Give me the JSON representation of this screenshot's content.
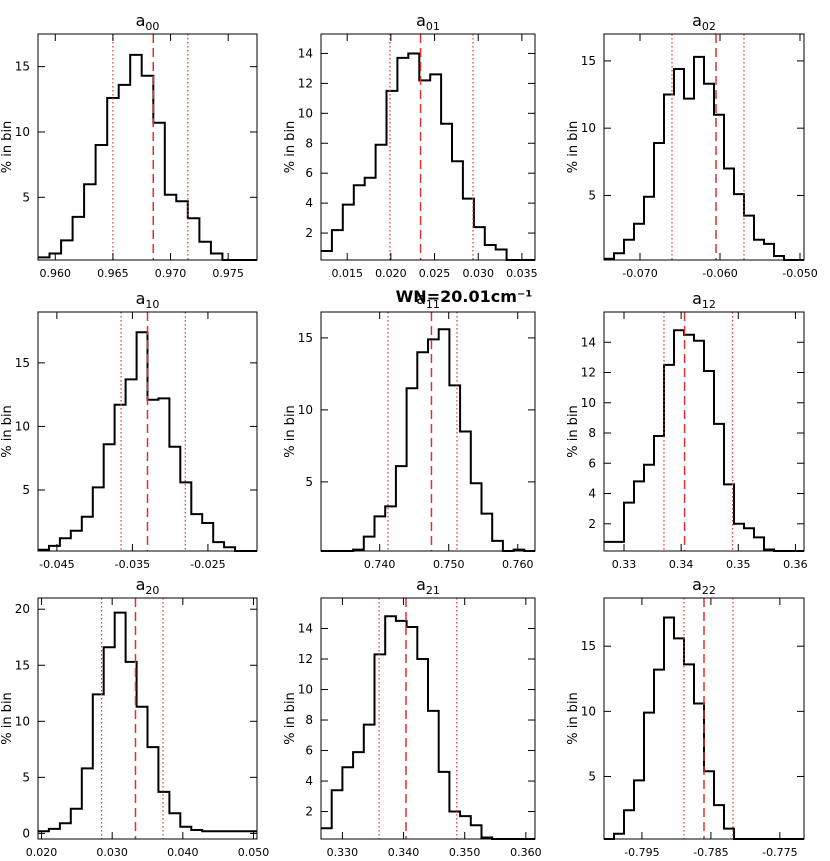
{
  "suptitle": "WN=20.01cm⁻¹",
  "style": {
    "hist_color": "#000000",
    "median_color": "#e03030",
    "bound_color": "#e03030"
  },
  "chart_data": [
    {
      "type": "histogram",
      "title": "a",
      "sub": "00",
      "ylabel": "% in bin",
      "xlim": [
        0.9585,
        0.9775
      ],
      "ylim": [
        0.2,
        17.5
      ],
      "xticks": [
        0.96,
        0.965,
        0.97,
        0.975
      ],
      "xtick_labels": [
        "0.960",
        "0.965",
        "0.970",
        "0.975"
      ],
      "yticks": [
        5,
        10,
        15
      ],
      "ytick_labels": [
        "5",
        "10",
        "15"
      ],
      "bin_start": 0.9585,
      "bin_width": 0.001,
      "values": [
        0.4,
        0.7,
        1.7,
        3.5,
        6.0,
        9.0,
        12.6,
        13.6,
        15.9,
        14.3,
        10.7,
        5.2,
        4.7,
        3.4,
        1.6,
        0.7,
        0.2,
        0.2,
        0.2
      ],
      "median": 0.9685,
      "lower": 0.965,
      "upper": 0.9715
    },
    {
      "type": "histogram",
      "title": "a",
      "sub": "01",
      "ylabel": "% in bin",
      "xlim": [
        0.012,
        0.0365
      ],
      "ylim": [
        0.2,
        15.3
      ],
      "xticks": [
        0.015,
        0.02,
        0.025,
        0.03,
        0.035
      ],
      "xtick_labels": [
        "0.015",
        "0.020",
        "0.025",
        "0.030",
        "0.035"
      ],
      "yticks": [
        2,
        4,
        6,
        8,
        10,
        12,
        14
      ],
      "ytick_labels": [
        "2",
        "4",
        "6",
        "8",
        "10",
        "12",
        "14"
      ],
      "bin_start": 0.012,
      "bin_width": 0.00125,
      "values": [
        0.8,
        2.2,
        3.9,
        5.2,
        5.7,
        7.9,
        11.5,
        13.7,
        14.0,
        12.2,
        12.6,
        9.3,
        6.8,
        4.3,
        2.4,
        1.2,
        0.9,
        0.2,
        0.2,
        0.2
      ],
      "median": 0.0234,
      "lower": 0.0199,
      "upper": 0.0294
    },
    {
      "type": "histogram",
      "title": "a",
      "sub": "02",
      "ylabel": "% in bin",
      "xlim": [
        -0.0745,
        -0.0495
      ],
      "ylim": [
        0.2,
        17.0
      ],
      "xticks": [
        -0.07,
        -0.06,
        -0.05
      ],
      "xtick_labels": [
        "-0.070",
        "-0.060",
        "-0.050"
      ],
      "yticks": [
        5,
        10,
        15
      ],
      "ytick_labels": [
        "5",
        "10",
        "15"
      ],
      "bin_start": -0.0745,
      "bin_width": 0.00125,
      "values": [
        0.3,
        0.7,
        1.7,
        2.9,
        4.9,
        8.9,
        12.5,
        14.4,
        12.2,
        15.3,
        13.3,
        11.0,
        7.0,
        5.1,
        3.5,
        1.7,
        1.4,
        0.5,
        0.2,
        0.2
      ],
      "median": -0.0605,
      "lower": -0.066,
      "upper": -0.057
    },
    {
      "type": "histogram",
      "title": "a",
      "sub": "10",
      "ylabel": "% in bin",
      "xlim": [
        -0.0475,
        -0.0185
      ],
      "ylim": [
        0.2,
        19.0
      ],
      "xticks": [
        -0.045,
        -0.035,
        -0.025
      ],
      "xtick_labels": [
        "-0.045",
        "-0.035",
        "-0.025"
      ],
      "yticks": [
        5,
        10,
        15
      ],
      "ytick_labels": [
        "5",
        "10",
        "15"
      ],
      "bin_start": -0.0475,
      "bin_width": 0.00145,
      "values": [
        0.3,
        0.6,
        1.2,
        1.8,
        2.9,
        5.2,
        8.6,
        11.7,
        13.7,
        17.4,
        12.1,
        12.2,
        8.4,
        5.6,
        3.1,
        2.4,
        0.9,
        0.5,
        0.2,
        0.2
      ],
      "median": -0.033,
      "lower": -0.0365,
      "upper": -0.028
    },
    {
      "type": "histogram",
      "title": "a",
      "sub": "11",
      "ylabel": "% in bin",
      "xlim": [
        0.7315,
        0.7625
      ],
      "ylim": [
        0.2,
        16.8
      ],
      "xticks": [
        0.74,
        0.75,
        0.76
      ],
      "xtick_labels": [
        "0.740",
        "0.750",
        "0.760"
      ],
      "yticks": [
        5,
        10,
        15
      ],
      "ytick_labels": [
        "5",
        "10",
        "15"
      ],
      "bin_start": 0.7315,
      "bin_width": 0.00155,
      "values": [
        0.2,
        0.2,
        0.2,
        0.3,
        1.2,
        2.6,
        3.3,
        6.1,
        11.5,
        14.0,
        14.9,
        15.6,
        11.7,
        8.5,
        4.9,
        2.8,
        0.9,
        0.2,
        0.3,
        0.2
      ],
      "median": 0.7475,
      "lower": 0.7412,
      "upper": 0.7512
    },
    {
      "type": "histogram",
      "title": "a",
      "sub": "12",
      "ylabel": "% in bin",
      "xlim": [
        0.3265,
        0.3615
      ],
      "ylim": [
        0.2,
        16.0
      ],
      "xticks": [
        0.33,
        0.34,
        0.35,
        0.36
      ],
      "xtick_labels": [
        "0.33",
        "0.34",
        "0.35",
        "0.36"
      ],
      "yticks": [
        2,
        4,
        6,
        8,
        10,
        12,
        14
      ],
      "ytick_labels": [
        "2",
        "4",
        "6",
        "8",
        "10",
        "12",
        "14"
      ],
      "bin_start": 0.3265,
      "bin_width": 0.00175,
      "values": [
        0.8,
        0.8,
        3.4,
        4.8,
        5.9,
        7.8,
        12.5,
        14.8,
        14.5,
        14.1,
        12.1,
        8.6,
        4.6,
        2.0,
        1.7,
        1.1,
        0.3,
        0.2,
        0.2,
        0.2
      ],
      "median": 0.3406,
      "lower": 0.337,
      "upper": 0.349
    },
    {
      "type": "histogram",
      "title": "a",
      "sub": "20",
      "ylabel": "% in bin",
      "xlim": [
        0.0195,
        0.0505
      ],
      "ylim": [
        -0.5,
        21.0
      ],
      "xticks": [
        0.02,
        0.03,
        0.04,
        0.05
      ],
      "xtick_labels": [
        "0.020",
        "0.030",
        "0.040",
        "0.050"
      ],
      "yticks": [
        0,
        5,
        10,
        15,
        20
      ],
      "ytick_labels": [
        "0",
        "5",
        "10",
        "15",
        "20"
      ],
      "bin_start": 0.0195,
      "bin_width": 0.00155,
      "values": [
        0.2,
        0.4,
        0.9,
        2.2,
        5.8,
        12.4,
        16.6,
        19.7,
        15.3,
        11.3,
        7.7,
        3.7,
        1.8,
        0.6,
        0.3,
        0.2,
        0.2,
        0.2,
        0.2,
        0.2
      ],
      "median": 0.0333,
      "lower": 0.0285,
      "upper": 0.0372
    },
    {
      "type": "histogram",
      "title": "a",
      "sub": "21",
      "ylabel": "% in bin",
      "xlim": [
        0.3265,
        0.3615
      ],
      "ylim": [
        0.2,
        16.0
      ],
      "xticks": [
        0.33,
        0.34,
        0.35,
        0.36
      ],
      "xtick_labels": [
        "0.330",
        "0.340",
        "0.350",
        "0.360"
      ],
      "yticks": [
        2,
        4,
        6,
        8,
        10,
        12,
        14
      ],
      "ytick_labels": [
        "2",
        "4",
        "6",
        "8",
        "10",
        "12",
        "14"
      ],
      "bin_start": 0.3265,
      "bin_width": 0.00175,
      "values": [
        0.9,
        3.4,
        4.9,
        5.9,
        7.7,
        12.3,
        14.8,
        14.5,
        14.1,
        12.0,
        8.6,
        4.6,
        2.0,
        1.7,
        1.1,
        0.3,
        0.2,
        0.2,
        0.2,
        0.2
      ],
      "median": 0.3404,
      "lower": 0.336,
      "upper": 0.3487
    },
    {
      "type": "histogram",
      "title": "a",
      "sub": "22",
      "ylabel": "% in bin",
      "xlim": [
        -0.8005,
        -0.7715
      ],
      "ylim": [
        0.2,
        18.7
      ],
      "xticks": [
        -0.795,
        -0.785,
        -0.775
      ],
      "xtick_labels": [
        "-0.795",
        "-0.785",
        "-0.775"
      ],
      "yticks": [
        5,
        10,
        15
      ],
      "ytick_labels": [
        "5",
        "10",
        "15"
      ],
      "bin_start": -0.8005,
      "bin_width": 0.00145,
      "values": [
        0.2,
        0.6,
        2.4,
        4.7,
        9.9,
        13.2,
        17.2,
        15.6,
        13.6,
        10.6,
        5.4,
        2.8,
        1.0,
        0.2,
        0.2,
        0.2,
        0.2,
        0.2,
        0.2,
        0.2
      ],
      "median": -0.786,
      "lower": -0.7889,
      "upper": -0.7818
    }
  ]
}
